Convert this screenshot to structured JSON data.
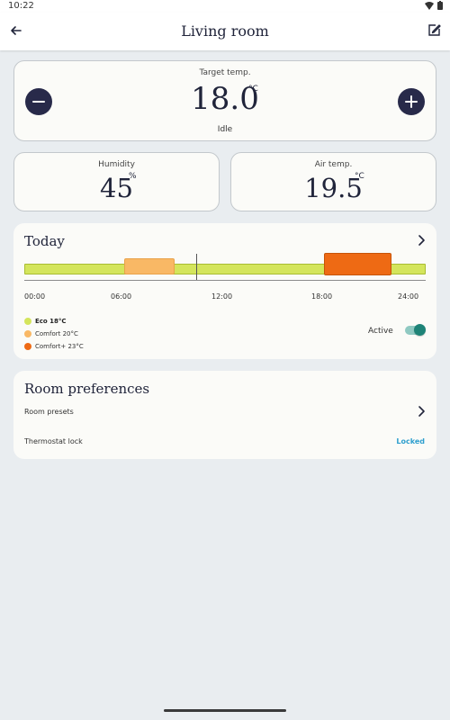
{
  "status_bar": {
    "time": "10:22"
  },
  "header": {
    "title": "Living room"
  },
  "target": {
    "label": "Target temp.",
    "value": "18.0",
    "unit": "°C",
    "state": "Idle"
  },
  "humidity": {
    "label": "Humidity",
    "value": "45",
    "unit": "%"
  },
  "air": {
    "label": "Air temp.",
    "value": "19.5",
    "unit": "°C"
  },
  "today": {
    "title": "Today",
    "ticks": [
      "00:00",
      "06:00",
      "12:00",
      "18:00",
      "24:00"
    ],
    "schedule": [
      {
        "mode": "Eco 18°C",
        "start": "00:00",
        "end": "06:00"
      },
      {
        "mode": "Comfort 20°C",
        "start": "06:00",
        "end": "09:00"
      },
      {
        "mode": "Eco 18°C",
        "start": "09:00",
        "end": "18:00"
      },
      {
        "mode": "Comfort+ 23°C",
        "start": "18:00",
        "end": "22:00"
      },
      {
        "mode": "Eco 18°C",
        "start": "22:00",
        "end": "24:00"
      }
    ],
    "now": "10:20",
    "legend": [
      {
        "label": "Eco 18°C",
        "color": "#d4e55c"
      },
      {
        "label": "Comfort 20°C",
        "color": "#f9b865"
      },
      {
        "label": "Comfort+ 23°C",
        "color": "#ee6a14"
      }
    ],
    "active_label": "Active",
    "active": true
  },
  "prefs": {
    "title": "Room preferences",
    "presets_label": "Room presets",
    "lock_label": "Thermostat lock",
    "lock_status": "Locked"
  },
  "colors": {
    "accent": "#282a4a",
    "toggle": "#1e8377",
    "link": "#2e9fce"
  }
}
